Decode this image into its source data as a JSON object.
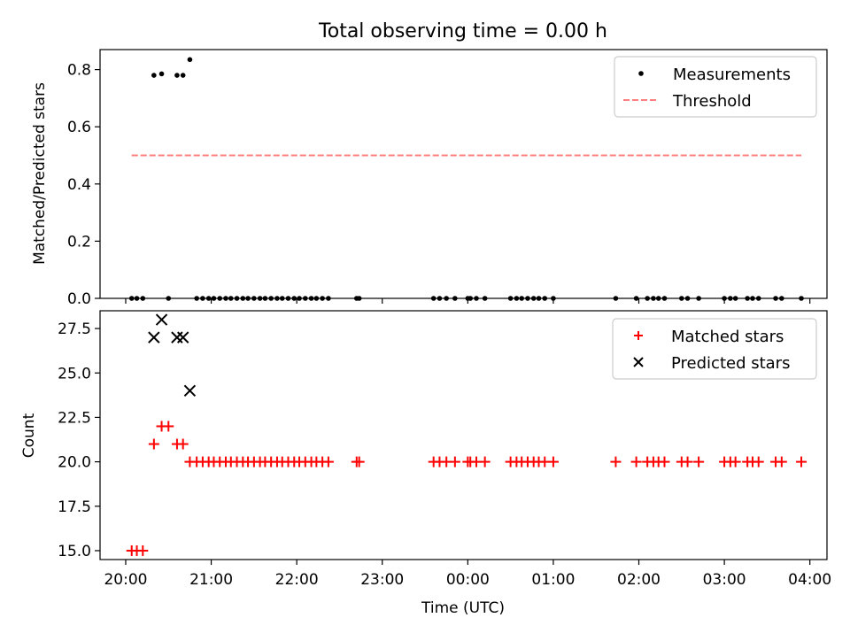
{
  "figure": {
    "title": "Total observing time = 0.00 h",
    "xlabel": "Time (UTC)",
    "xticks": [
      "20:00",
      "21:00",
      "22:00",
      "23:00",
      "00:00",
      "01:00",
      "02:00",
      "03:00",
      "04:00"
    ]
  },
  "colors": {
    "measurements": "#000000",
    "threshold": "#ff7f7f",
    "matched": "#ff0000",
    "predicted": "#000000"
  },
  "chart_data": [
    {
      "type": "scatter",
      "panel": "top",
      "ylabel": "Matched/Predicted stars",
      "xlim_hours": [
        -0.3,
        8.2
      ],
      "ylim": [
        0,
        0.87
      ],
      "yticks": [
        "0.0",
        "0.2",
        "0.4",
        "0.6",
        "0.8"
      ],
      "grid": false,
      "legend_position": "top-right",
      "legend": [
        "Measurements",
        "Threshold"
      ],
      "threshold": {
        "name": "Threshold",
        "y": 0.5,
        "x_start": 0.07,
        "x_end": 7.9
      },
      "series": [
        {
          "name": "Measurements",
          "points": [
            [
              0.07,
              0
            ],
            [
              0.13,
              0
            ],
            [
              0.2,
              0
            ],
            [
              0.33,
              0.78
            ],
            [
              0.42,
              0.785
            ],
            [
              0.5,
              0
            ],
            [
              0.6,
              0.78
            ],
            [
              0.67,
              0.78
            ],
            [
              0.75,
              0.835
            ],
            [
              0.83,
              0
            ],
            [
              0.9,
              0
            ],
            [
              0.97,
              0
            ],
            [
              1.03,
              0
            ],
            [
              1.1,
              0
            ],
            [
              1.17,
              0
            ],
            [
              1.23,
              0
            ],
            [
              1.3,
              0
            ],
            [
              1.37,
              0
            ],
            [
              1.43,
              0
            ],
            [
              1.5,
              0
            ],
            [
              1.57,
              0
            ],
            [
              1.63,
              0
            ],
            [
              1.7,
              0
            ],
            [
              1.77,
              0
            ],
            [
              1.83,
              0
            ],
            [
              1.9,
              0
            ],
            [
              1.97,
              0
            ],
            [
              2.03,
              0
            ],
            [
              2.1,
              0
            ],
            [
              2.17,
              0
            ],
            [
              2.23,
              0
            ],
            [
              2.3,
              0
            ],
            [
              2.37,
              0
            ],
            [
              2.7,
              0
            ],
            [
              2.73,
              0
            ],
            [
              3.6,
              0
            ],
            [
              3.67,
              0
            ],
            [
              3.75,
              0
            ],
            [
              3.85,
              0
            ],
            [
              4.0,
              0
            ],
            [
              4.03,
              0
            ],
            [
              4.1,
              0
            ],
            [
              4.2,
              0
            ],
            [
              4.5,
              0
            ],
            [
              4.57,
              0
            ],
            [
              4.63,
              0
            ],
            [
              4.7,
              0
            ],
            [
              4.77,
              0
            ],
            [
              4.83,
              0
            ],
            [
              4.9,
              0
            ],
            [
              5.0,
              0
            ],
            [
              5.73,
              0
            ],
            [
              5.97,
              0
            ],
            [
              6.1,
              0
            ],
            [
              6.17,
              0
            ],
            [
              6.23,
              0
            ],
            [
              6.3,
              0
            ],
            [
              6.5,
              0
            ],
            [
              6.57,
              0
            ],
            [
              6.7,
              0
            ],
            [
              7.0,
              0
            ],
            [
              7.07,
              0
            ],
            [
              7.13,
              0
            ],
            [
              7.27,
              0
            ],
            [
              7.33,
              0
            ],
            [
              7.4,
              0
            ],
            [
              7.6,
              0
            ],
            [
              7.67,
              0
            ],
            [
              7.9,
              0
            ]
          ]
        }
      ]
    },
    {
      "type": "scatter",
      "panel": "bottom",
      "ylabel": "Count",
      "xlim_hours": [
        -0.3,
        8.2
      ],
      "ylim": [
        14.5,
        28.5
      ],
      "yticks": [
        "15.0",
        "17.5",
        "20.0",
        "22.5",
        "25.0",
        "27.5"
      ],
      "grid": false,
      "legend_position": "top-right",
      "legend": [
        "Matched stars",
        "Predicted stars"
      ],
      "series": [
        {
          "name": "Matched stars",
          "marker": "plus",
          "points": [
            [
              0.07,
              15
            ],
            [
              0.13,
              15
            ],
            [
              0.2,
              15
            ],
            [
              0.33,
              21
            ],
            [
              0.42,
              22
            ],
            [
              0.5,
              22
            ],
            [
              0.6,
              21
            ],
            [
              0.67,
              21
            ],
            [
              0.75,
              20
            ],
            [
              0.83,
              20
            ],
            [
              0.9,
              20
            ],
            [
              0.97,
              20
            ],
            [
              1.03,
              20
            ],
            [
              1.1,
              20
            ],
            [
              1.17,
              20
            ],
            [
              1.23,
              20
            ],
            [
              1.3,
              20
            ],
            [
              1.37,
              20
            ],
            [
              1.43,
              20
            ],
            [
              1.5,
              20
            ],
            [
              1.57,
              20
            ],
            [
              1.63,
              20
            ],
            [
              1.7,
              20
            ],
            [
              1.77,
              20
            ],
            [
              1.83,
              20
            ],
            [
              1.9,
              20
            ],
            [
              1.97,
              20
            ],
            [
              2.03,
              20
            ],
            [
              2.1,
              20
            ],
            [
              2.17,
              20
            ],
            [
              2.23,
              20
            ],
            [
              2.3,
              20
            ],
            [
              2.37,
              20
            ],
            [
              2.7,
              20
            ],
            [
              2.73,
              20
            ],
            [
              3.6,
              20
            ],
            [
              3.67,
              20
            ],
            [
              3.75,
              20
            ],
            [
              3.85,
              20
            ],
            [
              4.0,
              20
            ],
            [
              4.03,
              20
            ],
            [
              4.1,
              20
            ],
            [
              4.2,
              20
            ],
            [
              4.5,
              20
            ],
            [
              4.57,
              20
            ],
            [
              4.63,
              20
            ],
            [
              4.7,
              20
            ],
            [
              4.77,
              20
            ],
            [
              4.83,
              20
            ],
            [
              4.9,
              20
            ],
            [
              5.0,
              20
            ],
            [
              5.73,
              20
            ],
            [
              5.97,
              20
            ],
            [
              6.1,
              20
            ],
            [
              6.17,
              20
            ],
            [
              6.23,
              20
            ],
            [
              6.3,
              20
            ],
            [
              6.5,
              20
            ],
            [
              6.57,
              20
            ],
            [
              6.7,
              20
            ],
            [
              7.0,
              20
            ],
            [
              7.07,
              20
            ],
            [
              7.13,
              20
            ],
            [
              7.27,
              20
            ],
            [
              7.33,
              20
            ],
            [
              7.4,
              20
            ],
            [
              7.6,
              20
            ],
            [
              7.67,
              20
            ],
            [
              7.9,
              20
            ]
          ]
        },
        {
          "name": "Predicted stars",
          "marker": "x",
          "points": [
            [
              0.33,
              27
            ],
            [
              0.42,
              28
            ],
            [
              0.6,
              27
            ],
            [
              0.67,
              27
            ],
            [
              0.75,
              24
            ]
          ]
        }
      ]
    }
  ]
}
